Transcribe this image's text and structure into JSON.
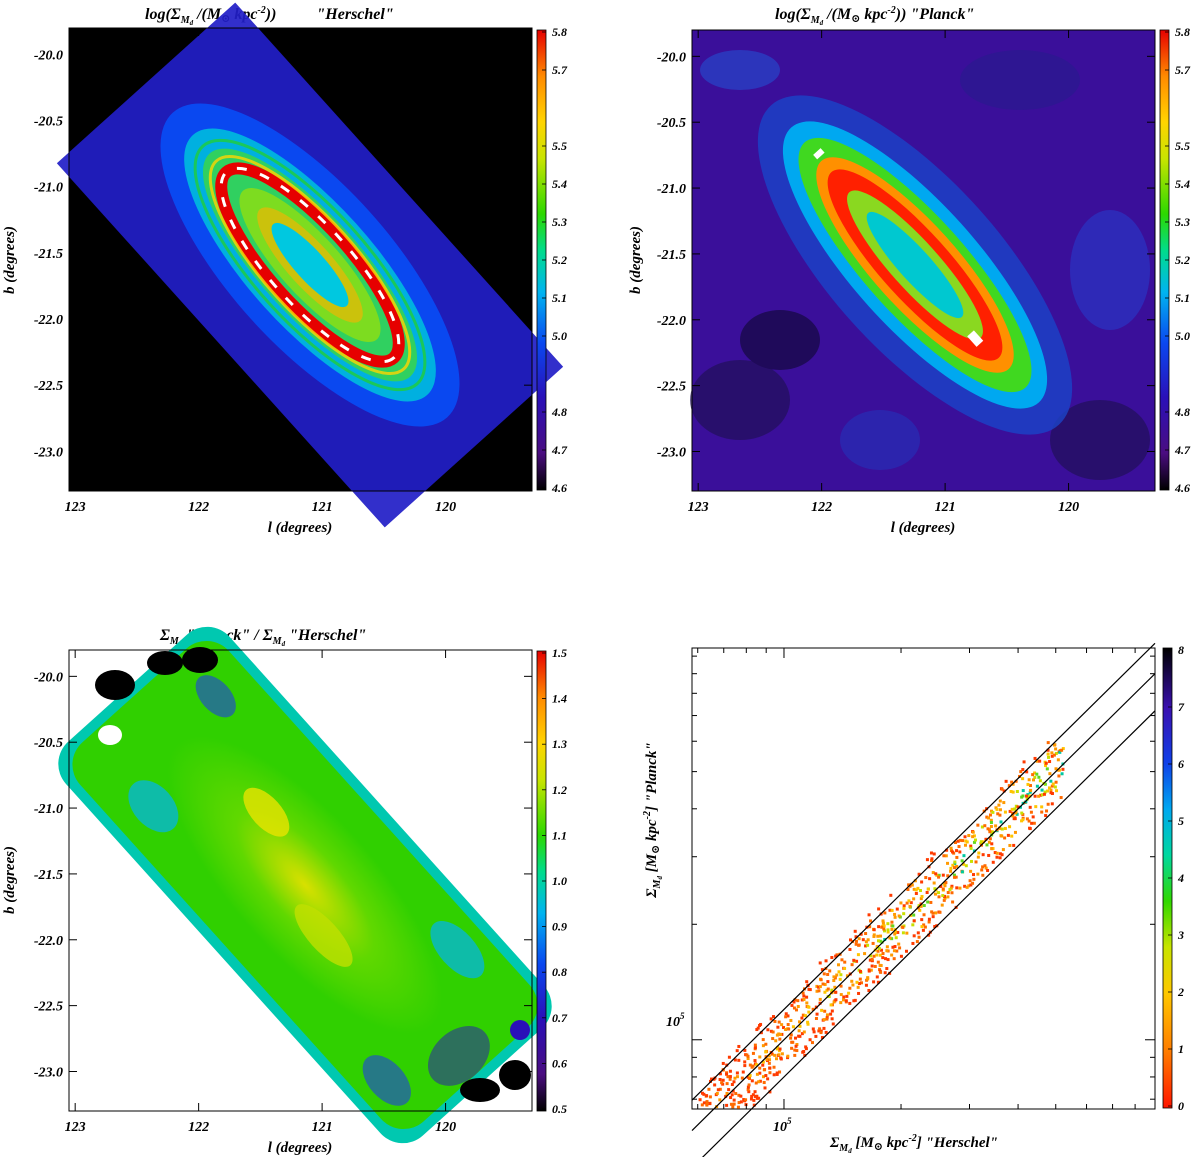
{
  "figure": "Dust mass surface density maps of M31: Herschel vs Planck",
  "colors": {
    "background": "#000000",
    "planck_background": "#3a0f9a",
    "colormap": [
      "#000000",
      "#4a0d80",
      "#2a10b8",
      "#0a48f0",
      "#00b4f0",
      "#00dc8c",
      "#2cd800",
      "#c8e400",
      "#ffd400",
      "#ff8a00",
      "#ff2200",
      "#e60000"
    ]
  },
  "chart_data": [
    {
      "id": "herschel_map",
      "type": "heatmap",
      "title_parts": {
        "pre": "log(Σ",
        "sub": "M",
        "subsub": "d",
        "mid": " /(M",
        "sun": "⊙",
        "kpc": " kpc",
        "sup": "-2",
        "post": "))",
        "label": "\"Herschel\""
      },
      "xlabel": "l (degrees)",
      "ylabel": "b (degrees)",
      "xticks": [
        "123",
        "122",
        "121",
        "120"
      ],
      "xtick_values": [
        123,
        122,
        121,
        120
      ],
      "xlim": [
        123.05,
        119.3
      ],
      "yticks": [
        "-20.0",
        "-20.5",
        "-21.0",
        "-21.5",
        "-22.0",
        "-22.5",
        "-23.0"
      ],
      "ytick_values": [
        -20.0,
        -20.5,
        -21.0,
        -21.5,
        -22.0,
        -22.5,
        -23.0
      ],
      "ylim": [
        -23.3,
        -19.8
      ],
      "colorbar": {
        "ticks": [
          "4.6",
          "4.7",
          "4.8",
          "5.0",
          "5.1",
          "5.2",
          "5.3",
          "5.4",
          "5.5",
          "5.7",
          "5.8"
        ],
        "range": [
          4.6,
          5.8
        ]
      },
      "center": {
        "l": 121.2,
        "b": -21.7
      },
      "position_angle_deg": 38
    },
    {
      "id": "planck_map",
      "type": "heatmap",
      "title_parts": {
        "pre": "log(Σ",
        "sub": "M",
        "subsub": "d",
        "mid": " /(M",
        "sun": "⊙",
        "kpc": " kpc",
        "sup": "-2",
        "post": ")) ",
        "label": "\"Planck\""
      },
      "xlabel": "l (degrees)",
      "ylabel": "b (degrees)",
      "xticks": [
        "123",
        "122",
        "121",
        "120"
      ],
      "xtick_values": [
        123,
        122,
        121,
        120
      ],
      "xlim": [
        123.05,
        119.3
      ],
      "yticks": [
        "-20.0",
        "-20.5",
        "-21.0",
        "-21.5",
        "-22.0",
        "-22.5",
        "-23.0"
      ],
      "ytick_values": [
        -20.0,
        -20.5,
        -21.0,
        -21.5,
        -22.0,
        -22.5,
        -23.0
      ],
      "ylim": [
        -23.3,
        -19.8
      ],
      "colorbar": {
        "ticks": [
          "4.6",
          "4.7",
          "4.8",
          "5.0",
          "5.1",
          "5.2",
          "5.3",
          "5.4",
          "5.5",
          "5.7",
          "5.8"
        ],
        "range": [
          4.6,
          5.8
        ]
      }
    },
    {
      "id": "ratio_map",
      "type": "heatmap",
      "title_parts": {
        "a": "Σ",
        "a_sub": "M",
        "a_subsub": "d",
        "a_label": " \"Planck\" / Σ",
        "b_sub": "M",
        "b_subsub": "d",
        "b_label": " \"Herschel\""
      },
      "xlabel": "l (degrees)",
      "ylabel": "b (degrees)",
      "xticks": [
        "123",
        "122",
        "121",
        "120"
      ],
      "xtick_values": [
        123,
        122,
        121,
        120
      ],
      "xlim": [
        123.05,
        119.3
      ],
      "yticks": [
        "-20.0",
        "-20.5",
        "-21.0",
        "-21.5",
        "-22.0",
        "-22.5",
        "-23.0"
      ],
      "ytick_values": [
        -20.0,
        -20.5,
        -21.0,
        -21.5,
        -22.0,
        -22.5,
        -23.0
      ],
      "ylim": [
        -23.3,
        -19.8
      ],
      "colorbar": {
        "ticks": [
          "0.5",
          "0.6",
          "0.7",
          "0.8",
          "0.9",
          "1.0",
          "1.1",
          "1.2",
          "1.3",
          "1.4",
          "1.5"
        ],
        "range": [
          0.5,
          1.5
        ]
      }
    },
    {
      "id": "pixel_density",
      "type": "heatmap",
      "xlabel_parts": {
        "pre": "Σ",
        "sub": "M",
        "subsub": "d",
        "mid": " [M",
        "sun": "⊙",
        "kpc": " kpc",
        "sup": "-2",
        "post": "] \"Herschel\""
      },
      "ylabel_parts": {
        "pre": "Σ",
        "sub": "M",
        "subsub": "d",
        "mid": " [M",
        "sun": "⊙",
        "kpc": " kpc",
        "sup": "-2",
        "post": "] \"Planck\""
      },
      "xscale": "log",
      "yscale": "log",
      "xtick_label": {
        "base": "10",
        "exp": "5"
      },
      "ytick_label": {
        "base": "10",
        "exp": "5"
      },
      "xtick_value": 100000,
      "ytick_value": 100000,
      "xlim": [
        58000,
        900000
      ],
      "ylim": [
        66000,
        1050000
      ],
      "reference_lines": [
        {
          "label": "y = 1.2 x",
          "factor": 1.2
        },
        {
          "label": "y = x",
          "factor": 1.0
        },
        {
          "label": "y = 0.8 x",
          "factor": 0.8
        }
      ],
      "colorbar": {
        "ticks": [
          "0",
          "1",
          "2",
          "3",
          "4",
          "5",
          "6",
          "7",
          "8"
        ],
        "range": [
          0,
          8
        ]
      },
      "points_range": {
        "x": [
          60000,
          520000
        ]
      }
    }
  ]
}
